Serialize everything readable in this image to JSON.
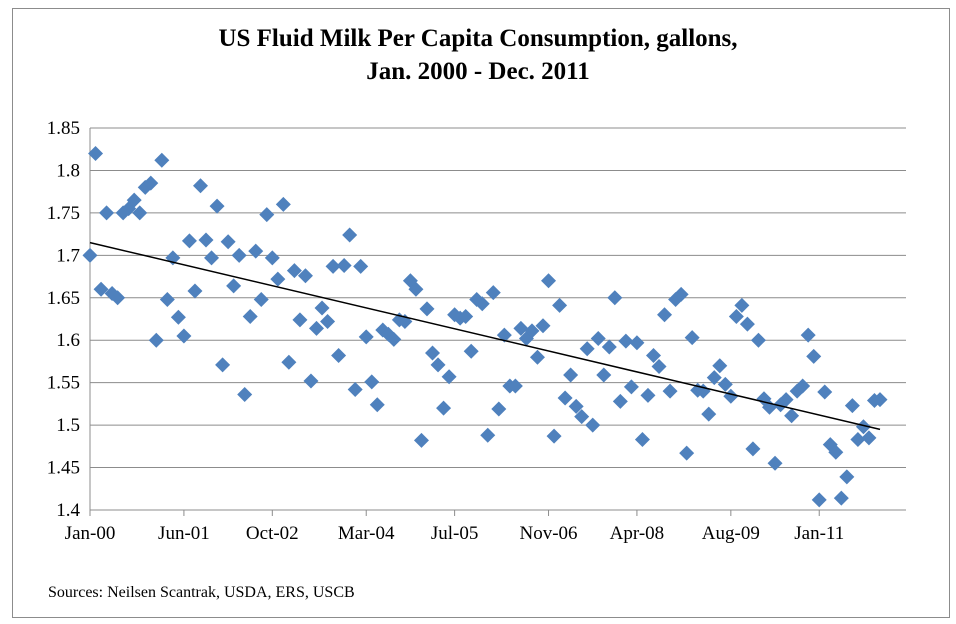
{
  "chart_data": {
    "type": "scatter",
    "title_line1": "US Fluid Milk Per Capita Consumption, gallons,",
    "title_line2": "Jan. 2000 - Dec. 2011",
    "xlabel": "",
    "ylabel": "",
    "ylim": [
      1.4,
      1.85
    ],
    "yticks": [
      1.4,
      1.45,
      1.5,
      1.55,
      1.6,
      1.65,
      1.7,
      1.75,
      1.8,
      1.85
    ],
    "ytick_labels": [
      "1.4",
      "1.45",
      "1.5",
      "1.55",
      "1.6",
      "1.65",
      "1.7",
      "1.75",
      "1.8",
      "1.85"
    ],
    "x_start": "2000-01",
    "x_end": "2011-12",
    "xticks": [
      0,
      17,
      33,
      50,
      66,
      83,
      99,
      116,
      132
    ],
    "xtick_labels": [
      "Jan-00",
      "Jun-01",
      "Oct-02",
      "Mar-04",
      "Jul-05",
      "Nov-06",
      "Apr-08",
      "Aug-09",
      "Jan-11"
    ],
    "grid": true,
    "legend": "none",
    "marker": "diamond",
    "marker_color": "#4f81bd",
    "trendline": {
      "type": "linear",
      "start": 1.715,
      "end": 1.495,
      "color": "#000000"
    },
    "values": [
      1.7,
      1.82,
      1.66,
      1.75,
      1.655,
      1.65,
      1.75,
      1.755,
      1.765,
      1.75,
      1.78,
      1.785,
      1.6,
      1.812,
      1.648,
      1.697,
      1.627,
      1.605,
      1.717,
      1.658,
      1.782,
      1.718,
      1.697,
      1.758,
      1.571,
      1.716,
      1.664,
      1.7,
      1.536,
      1.628,
      1.705,
      1.648,
      1.748,
      1.697,
      1.672,
      1.76,
      1.574,
      1.682,
      1.624,
      1.676,
      1.552,
      1.614,
      1.638,
      1.622,
      1.687,
      1.582,
      1.688,
      1.724,
      1.542,
      1.687,
      1.604,
      1.551,
      1.524,
      1.612,
      1.607,
      1.601,
      1.624,
      1.622,
      1.67,
      1.66,
      1.482,
      1.637,
      1.585,
      1.571,
      1.52,
      1.557,
      1.63,
      1.626,
      1.628,
      1.587,
      1.648,
      1.643,
      1.488,
      1.656,
      1.519,
      1.606,
      1.546,
      1.546,
      1.614,
      1.602,
      1.611,
      1.58,
      1.617,
      1.67,
      1.487,
      1.641,
      1.532,
      1.559,
      1.522,
      1.51,
      1.59,
      1.5,
      1.602,
      1.559,
      1.592,
      1.65,
      1.528,
      1.599,
      1.545,
      1.597,
      1.483,
      1.535,
      1.582,
      1.569,
      1.63,
      1.54,
      1.648,
      1.654,
      1.467,
      1.603,
      1.541,
      1.54,
      1.513,
      1.556,
      1.57,
      1.548,
      1.534,
      1.628,
      1.641,
      1.619,
      1.472,
      1.6,
      1.531,
      1.521,
      1.455,
      1.524,
      1.53,
      1.511,
      1.54,
      1.546,
      1.606,
      1.581,
      1.412,
      1.539,
      1.477,
      1.468,
      1.414,
      1.439,
      1.523,
      1.483,
      1.498,
      1.485,
      1.529,
      1.53
    ]
  },
  "footer": {
    "source": "Sources: Neilsen Scantrak, USDA, ERS, USCB"
  }
}
